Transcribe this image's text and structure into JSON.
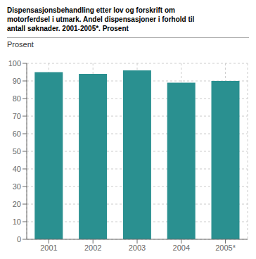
{
  "chart_data": {
    "type": "bar",
    "title": "Dispensasjonsbehandling etter lov og forskrift om\nmotorferdsel i utmark. Andel dispensasjoner i forhold til\nantall søknader. 2001-2005*. Prosent",
    "ylabel": "Prosent",
    "categories": [
      "2001",
      "2002",
      "2003",
      "2004",
      "2005*"
    ],
    "values": [
      95,
      94,
      96,
      89,
      90
    ],
    "color": "#2a9090",
    "ylim": [
      0,
      100
    ],
    "yticks": [
      0,
      10,
      20,
      30,
      40,
      50,
      60,
      70,
      80,
      90,
      100
    ],
    "grid": true
  }
}
